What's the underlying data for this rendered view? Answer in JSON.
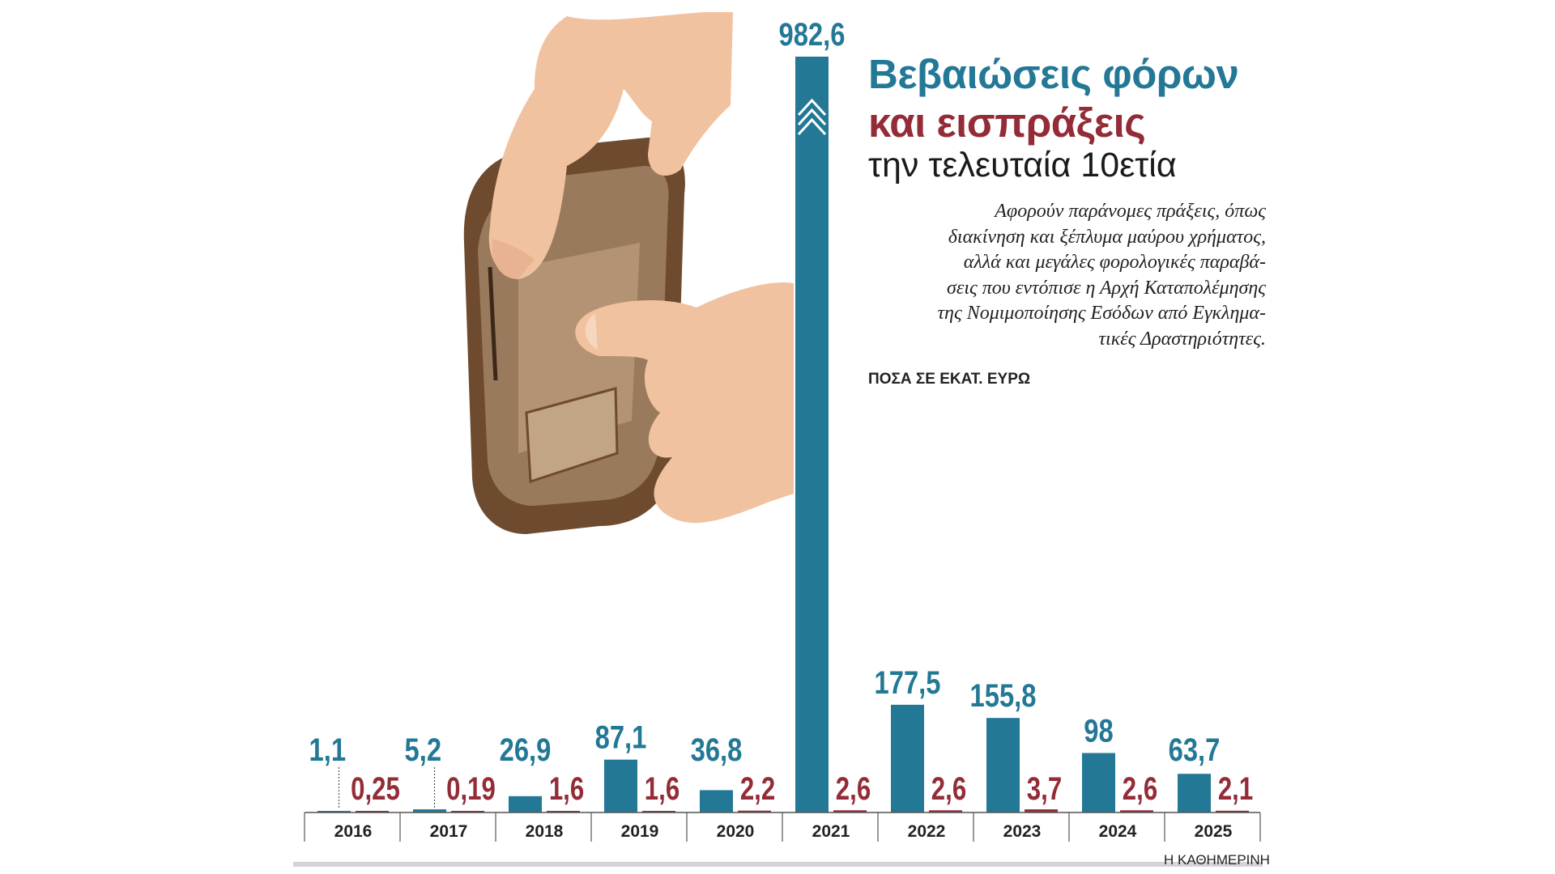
{
  "title": {
    "line1": "Βεβαιώσεις φόρων",
    "line2": "και εισπράξεις",
    "line3": "την τελευταία 10ετία"
  },
  "description_lines": [
    "Αφορούν παράνομες πράξεις, όπως",
    "διακίνηση και ξέπλυμα μαύρου χρήματος,",
    "αλλά και μεγάλες φορολογικές παραβά-",
    "σεις που εντόπισε η Αρχή Καταπολέμησης",
    "της Νομιμοποίησης Εσόδων από Εγκλημα-",
    "τικές Δραστηριότητες."
  ],
  "units_label": "ΠΟΣΑ ΣΕ ΕΚΑΤ. ΕΥΡΩ",
  "source": "Η ΚΑΘΗΜΕΡΙΝΗ",
  "colors": {
    "blue": "#237896",
    "red": "#932c37",
    "axis": "#555555",
    "bottom_bar": "#d4d4d4"
  },
  "photo_icon": "hands-empty-wallet-photo",
  "chart_data": {
    "type": "bar",
    "categories": [
      "2016",
      "2017",
      "2018",
      "2019",
      "2020",
      "2021",
      "2022",
      "2023",
      "2024",
      "2025"
    ],
    "series": [
      {
        "values": [
          1.1,
          5.2,
          26.9,
          87.1,
          36.8,
          982.6,
          177.5,
          155.8,
          98,
          63.7
        ],
        "labels": [
          "1,1",
          "5,2",
          "26,9",
          "87,1",
          "36,8",
          "982,6",
          "177,5",
          "155,8",
          "98",
          "63,7"
        ],
        "color": "#237896"
      },
      {
        "values": [
          0.25,
          0.19,
          1.6,
          1.6,
          2.2,
          2.6,
          2.6,
          3.7,
          2.6,
          2.1
        ],
        "labels": [
          "0,25",
          "0,19",
          "1,6",
          "1,6",
          "2,2",
          "2,6",
          "2,6",
          "3,7",
          "2,6",
          "2,1"
        ],
        "color": "#932c37"
      }
    ],
    "truncated_bar": "2021",
    "ylim": [
      0,
      982.6
    ],
    "grid": false,
    "legend": "none"
  }
}
